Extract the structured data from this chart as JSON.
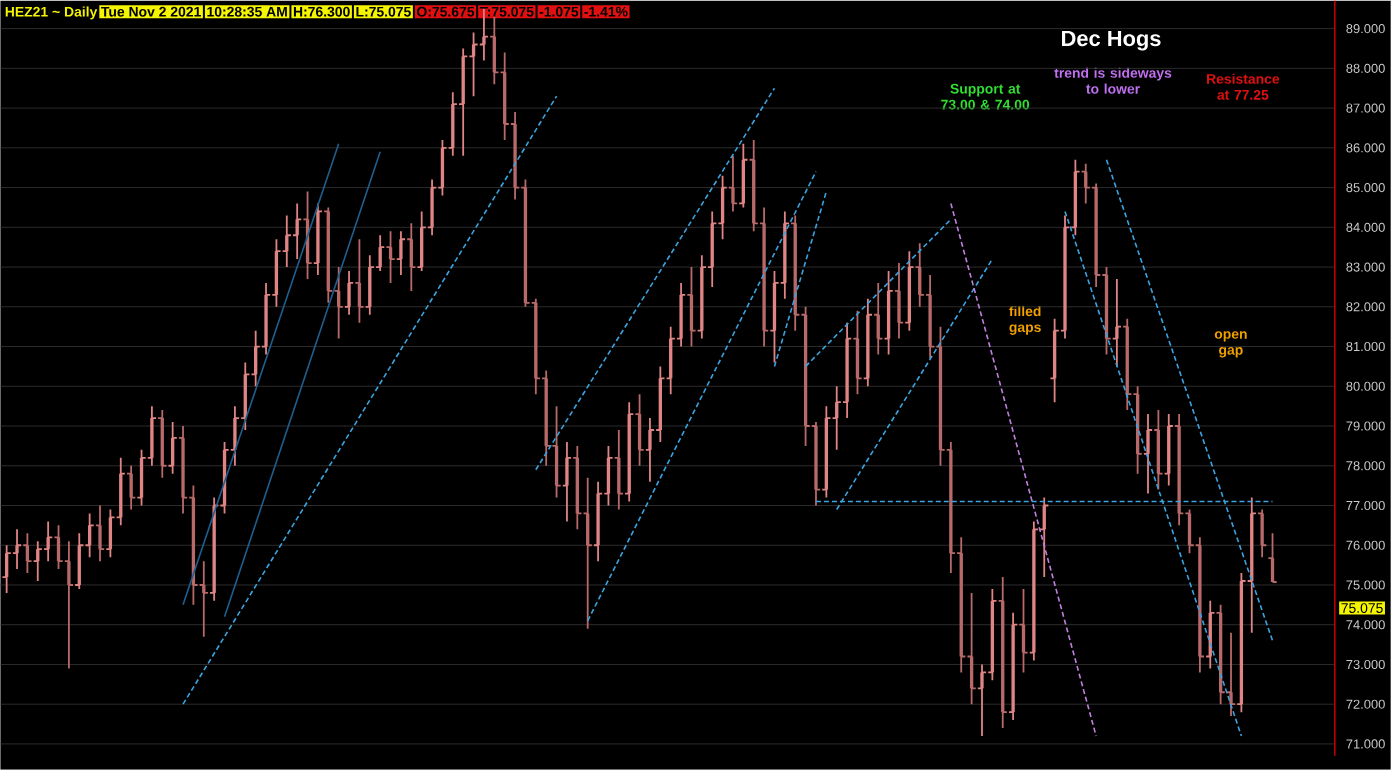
{
  "chart_data": {
    "type": "candlestick",
    "title": "Dec Hogs",
    "annotations": [
      "HEZ21 ~ Daily",
      "Tue Nov 2 2021",
      "10:28:35 AM",
      "H:76.300",
      "L:75.075",
      "O:75.675",
      "T:75.075",
      "-1.075",
      "-1.41%",
      "Support at 73.00 & 74.00",
      "trend is sideways to lower",
      "Resistance at 77.25",
      "filled gaps",
      "open gap",
      "75.075"
    ],
    "categories": [
      null,
      null,
      null,
      null,
      null,
      null,
      null,
      null,
      null,
      null,
      null,
      null,
      null,
      null,
      null,
      null,
      null,
      null,
      null,
      null,
      null,
      null,
      null,
      null,
      null,
      null,
      null,
      null,
      null,
      null,
      null,
      null,
      null,
      null,
      null,
      null,
      null,
      null,
      null,
      null,
      null,
      null,
      null,
      null,
      null,
      null,
      null,
      null,
      null,
      null,
      null,
      null,
      null,
      null,
      null,
      null,
      null,
      null,
      null,
      null,
      null,
      null,
      null,
      null,
      null,
      null,
      null,
      null,
      null,
      null,
      null,
      null,
      null,
      null,
      null,
      null,
      null,
      null,
      null,
      null,
      null,
      null,
      null,
      null,
      null,
      null,
      null,
      null,
      null,
      null,
      null,
      null,
      null,
      null,
      null,
      null,
      null,
      null,
      null,
      null,
      null,
      null,
      null,
      null,
      null,
      null,
      null,
      null,
      null,
      null,
      null,
      null,
      null,
      null,
      null,
      null,
      null,
      null,
      null,
      null,
      null,
      null,
      null
    ],
    "colors": [
      "#e08585",
      "#e08585",
      "#b86a6a",
      "#e08585",
      "#e08585",
      "#b86a6a",
      "#b86a6a",
      "#e08585",
      "#e08585",
      "#b86a6a",
      "#e08585",
      "#e08585",
      "#b86a6a",
      "#e08585",
      "#e08585",
      "#b86a6a",
      "#e08585",
      "#b86a6a",
      "#b86a6a",
      "#b86a6a",
      "#e08585",
      "#e08585",
      "#e08585",
      "#e08585",
      "#e08585",
      "#e08585",
      "#e08585",
      "#e08585",
      "#e08585",
      "#b86a6a",
      "#e08585",
      "#b86a6a",
      "#b86a6a",
      "#e08585",
      "#b86a6a",
      "#e08585",
      "#e08585",
      "#b86a6a",
      "#e08585",
      "#b86a6a",
      "#e08585",
      "#e08585",
      "#e08585",
      "#e08585",
      "#e08585",
      "#e08585",
      "#e08585",
      "#b86a6a",
      "#b86a6a",
      "#b86a6a",
      "#b86a6a",
      "#b86a6a",
      "#b86a6a",
      "#b86a6a",
      "#e08585",
      "#b86a6a",
      "#b86a6a",
      "#e08585",
      "#e08585",
      "#b86a6a",
      "#e08585",
      "#b86a6a",
      "#e08585",
      "#e08585",
      "#e08585",
      "#e08585",
      "#b86a6a",
      "#e08585",
      "#e08585",
      "#e08585",
      "#b86a6a",
      "#e08585",
      "#b86a6a",
      "#b86a6a",
      "#e08585",
      "#e08585",
      "#b86a6a",
      "#b86a6a",
      "#b86a6a",
      "#e08585",
      "#e08585",
      "#e08585",
      "#b86a6a",
      "#e08585",
      "#b86a6a",
      "#e08585",
      "#b86a6a",
      "#e08585",
      "#b86a6a",
      "#b86a6a",
      "#b86a6a",
      "#b86a6a",
      "#b86a6a",
      "#b86a6a",
      "#e08585",
      "#e08585",
      "#b86a6a",
      "#e08585",
      "#b86a6a",
      "#e08585",
      "#e08585",
      "#e08585",
      "#e08585",
      "#e08585",
      "#b86a6a",
      "#b86a6a",
      "#b86a6a",
      "#e08585",
      "#b86a6a",
      "#b86a6a",
      "#e08585",
      "#b86a6a",
      "#e08585",
      "#b86a6a",
      "#b86a6a",
      "#b86a6a",
      "#e08585",
      "#b86a6a",
      "#b86a6a",
      "#e08585",
      "#e08585",
      "#b86a6a",
      "#b86a6a"
    ],
    "ohlc": [
      [
        75.2,
        76.0,
        74.8,
        75.8
      ],
      [
        75.8,
        76.4,
        75.4,
        76.0
      ],
      [
        76.0,
        76.3,
        75.3,
        75.6
      ],
      [
        75.6,
        76.1,
        75.1,
        75.9
      ],
      [
        75.9,
        76.6,
        75.6,
        76.2
      ],
      [
        76.2,
        76.5,
        75.4,
        75.6
      ],
      [
        75.6,
        76.1,
        72.9,
        75.0
      ],
      [
        75.0,
        76.3,
        74.9,
        76.0
      ],
      [
        76.0,
        76.8,
        75.7,
        76.5
      ],
      [
        76.5,
        77.0,
        75.6,
        75.9
      ],
      [
        75.9,
        76.9,
        75.7,
        76.7
      ],
      [
        76.7,
        78.2,
        76.5,
        77.8
      ],
      [
        77.8,
        78.0,
        76.9,
        77.2
      ],
      [
        77.2,
        78.4,
        77.0,
        78.2
      ],
      [
        78.2,
        79.5,
        78.0,
        79.2
      ],
      [
        79.2,
        79.4,
        77.7,
        78.0
      ],
      [
        78.0,
        79.1,
        77.8,
        78.7
      ],
      [
        78.7,
        79.0,
        76.8,
        77.2
      ],
      [
        77.2,
        77.5,
        74.5,
        75.0
      ],
      [
        75.0,
        75.6,
        73.7,
        74.8
      ],
      [
        74.8,
        77.2,
        74.6,
        77.0
      ],
      [
        77.0,
        78.6,
        76.8,
        78.4
      ],
      [
        78.4,
        79.5,
        78.0,
        79.2
      ],
      [
        79.2,
        80.6,
        78.9,
        80.3
      ],
      [
        80.3,
        81.4,
        80.0,
        81.0
      ],
      [
        81.0,
        82.6,
        80.8,
        82.3
      ],
      [
        82.3,
        83.7,
        82.0,
        83.4
      ],
      [
        83.4,
        84.3,
        83.0,
        83.8
      ],
      [
        83.8,
        84.6,
        83.2,
        84.2
      ],
      [
        84.2,
        84.9,
        82.7,
        83.1
      ],
      [
        83.1,
        84.6,
        82.8,
        84.4
      ],
      [
        84.4,
        84.5,
        82.1,
        82.4
      ],
      [
        82.4,
        83.0,
        81.2,
        82.0
      ],
      [
        82.0,
        82.9,
        81.8,
        82.6
      ],
      [
        82.6,
        83.7,
        81.6,
        82.0
      ],
      [
        82.0,
        83.3,
        81.8,
        83.0
      ],
      [
        83.0,
        83.8,
        82.9,
        83.5
      ],
      [
        83.5,
        83.9,
        82.6,
        83.2
      ],
      [
        83.2,
        83.9,
        82.8,
        83.7
      ],
      [
        83.7,
        84.1,
        82.4,
        83.0
      ],
      [
        83.0,
        84.4,
        82.9,
        84.0
      ],
      [
        84.0,
        85.2,
        83.8,
        85.0
      ],
      [
        85.0,
        86.2,
        84.8,
        86.0
      ],
      [
        86.0,
        87.4,
        85.8,
        87.1
      ],
      [
        87.1,
        88.5,
        85.8,
        88.3
      ],
      [
        88.3,
        88.9,
        87.3,
        88.6
      ],
      [
        88.6,
        89.5,
        88.2,
        88.8
      ],
      [
        88.8,
        89.3,
        87.6,
        87.9
      ],
      [
        87.9,
        88.4,
        86.2,
        86.6
      ],
      [
        86.6,
        86.9,
        84.7,
        85.0
      ],
      [
        85.0,
        85.2,
        82.0,
        82.1
      ],
      [
        82.1,
        82.2,
        79.8,
        80.2
      ],
      [
        80.2,
        80.4,
        78.0,
        78.5
      ],
      [
        78.5,
        79.5,
        77.2,
        77.5
      ],
      [
        77.5,
        78.6,
        76.6,
        78.2
      ],
      [
        78.2,
        78.5,
        76.4,
        76.8
      ],
      [
        76.8,
        77.7,
        73.9,
        76.0
      ],
      [
        76.0,
        77.6,
        75.6,
        77.3
      ],
      [
        77.3,
        78.5,
        77.0,
        78.2
      ],
      [
        78.2,
        78.9,
        76.9,
        77.3
      ],
      [
        77.3,
        79.6,
        77.1,
        79.3
      ],
      [
        79.3,
        79.8,
        78.0,
        78.4
      ],
      [
        78.4,
        79.2,
        77.6,
        78.9
      ],
      [
        78.9,
        80.5,
        78.6,
        80.2
      ],
      [
        80.2,
        81.5,
        79.8,
        81.2
      ],
      [
        81.2,
        82.6,
        81.0,
        82.3
      ],
      [
        82.3,
        83.0,
        81.0,
        81.4
      ],
      [
        81.4,
        83.3,
        81.2,
        83.0
      ],
      [
        83.0,
        84.4,
        82.5,
        84.1
      ],
      [
        84.1,
        85.3,
        83.7,
        85.0
      ],
      [
        85.0,
        85.8,
        84.4,
        84.6
      ],
      [
        84.6,
        86.1,
        84.5,
        85.7
      ],
      [
        85.7,
        86.2,
        83.9,
        84.1
      ],
      [
        84.1,
        84.5,
        81.0,
        81.4
      ],
      [
        81.4,
        82.9,
        80.6,
        82.6
      ],
      [
        82.6,
        84.4,
        82.2,
        84.1
      ],
      [
        84.1,
        84.3,
        81.4,
        81.8
      ],
      [
        81.8,
        82.0,
        78.5,
        79.0
      ],
      [
        79.0,
        79.1,
        77.0,
        77.4
      ],
      [
        77.4,
        79.5,
        77.2,
        79.2
      ],
      [
        79.2,
        80.0,
        78.4,
        79.6
      ],
      [
        79.6,
        81.6,
        79.2,
        81.2
      ],
      [
        81.2,
        81.9,
        79.8,
        80.2
      ],
      [
        80.2,
        82.2,
        80.0,
        81.8
      ],
      [
        81.8,
        82.6,
        80.8,
        81.2
      ],
      [
        81.2,
        82.9,
        80.8,
        82.4
      ],
      [
        82.4,
        83.1,
        81.2,
        81.6
      ],
      [
        81.6,
        83.4,
        81.4,
        83.0
      ],
      [
        83.0,
        83.6,
        82.0,
        82.3
      ],
      [
        82.3,
        82.8,
        80.7,
        81.0
      ],
      [
        81.0,
        81.5,
        78.0,
        78.4
      ],
      [
        78.4,
        78.6,
        75.3,
        75.8
      ],
      [
        75.8,
        76.2,
        72.8,
        73.2
      ],
      [
        73.2,
        74.8,
        72.0,
        72.4
      ],
      [
        72.4,
        73.0,
        71.2,
        72.8
      ],
      [
        72.8,
        74.9,
        72.6,
        74.6
      ],
      [
        74.6,
        75.2,
        71.4,
        71.8
      ],
      [
        71.8,
        74.3,
        71.6,
        74.0
      ],
      [
        74.0,
        74.9,
        72.8,
        73.3
      ],
      [
        73.3,
        76.6,
        73.1,
        76.4
      ],
      [
        76.4,
        77.2,
        75.2,
        77.0
      ],
      [
        80.2,
        81.7,
        79.6,
        81.4
      ],
      [
        81.4,
        84.3,
        81.2,
        84.0
      ],
      [
        84.0,
        85.7,
        83.8,
        85.4
      ],
      [
        85.4,
        85.6,
        84.6,
        85.0
      ],
      [
        85.0,
        85.1,
        82.5,
        82.8
      ],
      [
        82.8,
        83.0,
        80.8,
        81.2
      ],
      [
        81.2,
        82.7,
        80.5,
        81.5
      ],
      [
        81.5,
        81.7,
        79.4,
        79.8
      ],
      [
        79.8,
        80.0,
        77.8,
        78.3
      ],
      [
        78.3,
        79.3,
        77.3,
        78.9
      ],
      [
        78.9,
        79.4,
        77.4,
        77.8
      ],
      [
        77.8,
        79.3,
        77.5,
        79.0
      ],
      [
        79.0,
        79.3,
        76.5,
        76.8
      ],
      [
        76.8,
        76.9,
        75.8,
        76.0
      ],
      [
        76.0,
        76.2,
        72.8,
        73.2
      ],
      [
        73.2,
        74.6,
        72.9,
        74.3
      ],
      [
        74.3,
        74.5,
        72.0,
        72.3
      ],
      [
        72.3,
        73.8,
        71.7,
        72.0
      ],
      [
        72.0,
        75.3,
        71.8,
        75.1
      ],
      [
        75.1,
        77.2,
        73.8,
        76.8
      ],
      [
        76.8,
        76.9,
        75.7,
        76.0
      ],
      [
        75.675,
        76.3,
        75.075,
        75.075
      ]
    ],
    "series": [
      {
        "type": "line",
        "color": "#1f5f8f",
        "line_style": "solid",
        "values": [
          null,
          null,
          null,
          null,
          null,
          null,
          null,
          null,
          null,
          null,
          null,
          null,
          null,
          null,
          null,
          null,
          null,
          74.5,
          null,
          null,
          null,
          null,
          null,
          null,
          null,
          null,
          null,
          null,
          null,
          null,
          null,
          null,
          86.1,
          null,
          null,
          null,
          null,
          null,
          null,
          null,
          null,
          null,
          null,
          null,
          null,
          null,
          null,
          null,
          null,
          null,
          null,
          null,
          null,
          null,
          null,
          null,
          null,
          null,
          null,
          null,
          null,
          null,
          null,
          null,
          null,
          null,
          null,
          null,
          null,
          null,
          null,
          null,
          null,
          null,
          null,
          null,
          null,
          null,
          null,
          null,
          null,
          null,
          null,
          null,
          null,
          null,
          null,
          null,
          null,
          null,
          null,
          null,
          null,
          null,
          null,
          null,
          null,
          null,
          null,
          null,
          null,
          null,
          null,
          null,
          null,
          null,
          null,
          null,
          null,
          null,
          null,
          null,
          null,
          null,
          null,
          null,
          null,
          null,
          null,
          null,
          null,
          null,
          null
        ]
      },
      {
        "type": "line",
        "color": "#1f5f8f",
        "line_style": "solid",
        "values": [
          null,
          null,
          null,
          null,
          null,
          null,
          null,
          null,
          null,
          null,
          null,
          null,
          null,
          null,
          null,
          null,
          null,
          null,
          null,
          null,
          null,
          74.2,
          null,
          null,
          null,
          null,
          null,
          null,
          null,
          null,
          null,
          null,
          null,
          null,
          null,
          null,
          85.9,
          null,
          null,
          null,
          null,
          null,
          null,
          null,
          null,
          null,
          null,
          null,
          null,
          null,
          null,
          null,
          null,
          null,
          null,
          null,
          null,
          null,
          null,
          null,
          null,
          null,
          null,
          null,
          null,
          null,
          null,
          null,
          null,
          null,
          null,
          null,
          null,
          null,
          null,
          null,
          null,
          null,
          null,
          null,
          null,
          null,
          null,
          null,
          null,
          null,
          null,
          null,
          null,
          null,
          null,
          null,
          null,
          null,
          null,
          null,
          null,
          null,
          null,
          null,
          null,
          null,
          null,
          null,
          null,
          null,
          null,
          null,
          null,
          null,
          null,
          null,
          null,
          null,
          null,
          null,
          null,
          null,
          null,
          null,
          null,
          null,
          null
        ]
      },
      {
        "type": "line",
        "color": "#3ba3e0",
        "line_style": "dashed",
        "values": [
          null,
          null,
          null,
          null,
          null,
          null,
          null,
          null,
          null,
          null,
          null,
          null,
          null,
          null,
          null,
          null,
          null,
          72.0,
          null,
          null,
          null,
          null,
          null,
          null,
          null,
          null,
          null,
          null,
          null,
          null,
          null,
          null,
          null,
          null,
          null,
          null,
          null,
          null,
          null,
          null,
          null,
          null,
          null,
          null,
          null,
          null,
          null,
          null,
          null,
          null,
          null,
          null,
          null,
          87.3,
          null,
          null,
          null,
          null,
          null,
          null,
          null,
          null,
          null,
          null,
          null,
          null,
          null,
          null,
          null,
          null,
          null,
          null,
          null,
          null,
          null,
          null,
          null,
          null,
          null,
          null,
          null,
          null,
          null,
          null,
          null,
          null,
          null,
          null,
          null,
          null,
          null,
          null,
          null,
          null,
          null,
          null,
          null,
          null,
          null,
          null,
          null,
          null,
          null,
          null,
          null,
          null,
          null,
          null,
          null,
          null,
          null,
          null,
          null,
          null,
          null,
          null,
          null,
          null,
          null,
          null,
          null,
          null,
          null
        ]
      },
      {
        "type": "line",
        "color": "#3ba3e0",
        "line_style": "dashed",
        "values": [
          null,
          null,
          null,
          null,
          null,
          null,
          null,
          null,
          null,
          null,
          null,
          null,
          null,
          null,
          null,
          null,
          null,
          null,
          null,
          null,
          null,
          null,
          null,
          null,
          null,
          null,
          null,
          null,
          null,
          null,
          null,
          null,
          null,
          null,
          null,
          null,
          null,
          null,
          null,
          null,
          null,
          null,
          null,
          null,
          null,
          null,
          null,
          null,
          null,
          null,
          null,
          77.9,
          null,
          null,
          null,
          null,
          null,
          null,
          null,
          null,
          null,
          null,
          null,
          null,
          null,
          null,
          null,
          null,
          null,
          null,
          null,
          null,
          null,
          null,
          87.5,
          null,
          null,
          null,
          null,
          null,
          null,
          null,
          null,
          null,
          null,
          null,
          null,
          null,
          null,
          null,
          null,
          null,
          null,
          null,
          null,
          null,
          null,
          null,
          null,
          null,
          null,
          null,
          null,
          null,
          null,
          null,
          null,
          null,
          null,
          null,
          null,
          null,
          null,
          null,
          null,
          null,
          null,
          null,
          null,
          null,
          null,
          null,
          null
        ]
      },
      {
        "type": "line",
        "color": "#3ba3e0",
        "line_style": "dashed",
        "values": [
          null,
          null,
          null,
          null,
          null,
          null,
          null,
          null,
          null,
          null,
          null,
          null,
          null,
          null,
          null,
          null,
          null,
          null,
          null,
          null,
          null,
          null,
          null,
          null,
          null,
          null,
          null,
          null,
          null,
          null,
          null,
          null,
          null,
          null,
          null,
          null,
          null,
          null,
          null,
          null,
          null,
          null,
          null,
          null,
          null,
          null,
          null,
          null,
          null,
          null,
          null,
          null,
          null,
          null,
          null,
          null,
          74.1,
          null,
          null,
          null,
          null,
          null,
          null,
          null,
          null,
          null,
          null,
          null,
          null,
          null,
          null,
          null,
          null,
          null,
          null,
          null,
          null,
          null,
          85.4,
          null,
          null,
          null,
          null,
          null,
          null,
          null,
          null,
          null,
          null,
          null,
          null,
          null,
          null,
          null,
          null,
          null,
          null,
          null,
          null,
          null,
          null,
          null,
          null,
          null,
          null,
          null,
          null,
          null,
          null,
          null,
          null,
          null,
          null,
          null,
          null,
          null,
          null,
          null,
          null,
          null,
          null,
          null,
          null
        ]
      },
      {
        "type": "line",
        "color": "#3ba3e0",
        "line_style": "dashed",
        "values": [
          null,
          null,
          null,
          null,
          null,
          null,
          null,
          null,
          null,
          null,
          null,
          null,
          null,
          null,
          null,
          null,
          null,
          null,
          null,
          null,
          null,
          null,
          null,
          null,
          null,
          null,
          null,
          null,
          null,
          null,
          null,
          null,
          null,
          null,
          null,
          null,
          null,
          null,
          null,
          null,
          null,
          null,
          null,
          null,
          null,
          null,
          null,
          null,
          null,
          null,
          null,
          null,
          null,
          null,
          null,
          null,
          null,
          null,
          null,
          null,
          null,
          null,
          null,
          null,
          null,
          null,
          null,
          null,
          null,
          null,
          null,
          null,
          null,
          null,
          80.5,
          null,
          null,
          null,
          null,
          84.9,
          null,
          null,
          null,
          null,
          null,
          null,
          null,
          null,
          null,
          null,
          null,
          null,
          null,
          null,
          null,
          null,
          null,
          null,
          null,
          null,
          null,
          null,
          null,
          null,
          null,
          null,
          null,
          null,
          null,
          null,
          null,
          null,
          null,
          null,
          null,
          null,
          null,
          null,
          null,
          null,
          null,
          null,
          null
        ]
      },
      {
        "type": "line",
        "color": "#3ba3e0",
        "line_style": "dashed",
        "values": [
          null,
          null,
          null,
          null,
          null,
          null,
          null,
          null,
          null,
          null,
          null,
          null,
          null,
          null,
          null,
          null,
          null,
          null,
          null,
          null,
          null,
          null,
          null,
          null,
          null,
          null,
          null,
          null,
          null,
          null,
          null,
          null,
          null,
          null,
          null,
          null,
          null,
          null,
          null,
          null,
          null,
          null,
          null,
          null,
          null,
          null,
          null,
          null,
          null,
          null,
          null,
          null,
          null,
          null,
          null,
          null,
          null,
          null,
          null,
          null,
          null,
          null,
          null,
          null,
          null,
          null,
          null,
          null,
          null,
          null,
          null,
          null,
          null,
          null,
          null,
          null,
          null,
          80.5,
          null,
          null,
          null,
          null,
          null,
          null,
          null,
          null,
          null,
          null,
          null,
          null,
          null,
          84.2,
          null,
          null,
          null,
          null,
          null,
          null,
          null,
          null,
          null,
          null,
          null,
          null,
          null,
          null,
          null,
          null,
          null,
          null,
          null,
          null,
          null,
          null,
          null,
          null,
          null,
          null,
          null,
          null,
          null,
          null,
          null
        ]
      },
      {
        "type": "line",
        "color": "#3ba3e0",
        "line_style": "dashed",
        "values": [
          null,
          null,
          null,
          null,
          null,
          null,
          null,
          null,
          null,
          null,
          null,
          null,
          null,
          null,
          null,
          null,
          null,
          null,
          null,
          null,
          null,
          null,
          null,
          null,
          null,
          null,
          null,
          null,
          null,
          null,
          null,
          null,
          null,
          null,
          null,
          null,
          null,
          null,
          null,
          null,
          null,
          null,
          null,
          null,
          null,
          null,
          null,
          null,
          null,
          null,
          null,
          null,
          null,
          null,
          null,
          null,
          null,
          null,
          null,
          null,
          null,
          null,
          null,
          null,
          null,
          null,
          null,
          null,
          null,
          null,
          null,
          null,
          null,
          null,
          null,
          null,
          null,
          null,
          null,
          null,
          76.9,
          null,
          null,
          null,
          null,
          null,
          null,
          null,
          null,
          null,
          null,
          null,
          null,
          null,
          null,
          83.2,
          null,
          null,
          null,
          null,
          null,
          null,
          null,
          null,
          null,
          null,
          null,
          null,
          null,
          null,
          null,
          null,
          null,
          null,
          null,
          null,
          null,
          null,
          null,
          null,
          null,
          null,
          null
        ]
      },
      {
        "type": "line",
        "color": "#c080e0",
        "line_style": "dashed",
        "values": [
          null,
          null,
          null,
          null,
          null,
          null,
          null,
          null,
          null,
          null,
          null,
          null,
          null,
          null,
          null,
          null,
          null,
          null,
          null,
          null,
          null,
          null,
          null,
          null,
          null,
          null,
          null,
          null,
          null,
          null,
          null,
          null,
          null,
          null,
          null,
          null,
          null,
          null,
          null,
          null,
          null,
          null,
          null,
          null,
          null,
          null,
          null,
          null,
          null,
          null,
          null,
          null,
          null,
          null,
          null,
          null,
          null,
          null,
          null,
          null,
          null,
          null,
          null,
          null,
          null,
          null,
          null,
          null,
          null,
          null,
          null,
          null,
          null,
          null,
          null,
          null,
          null,
          null,
          null,
          null,
          null,
          null,
          null,
          null,
          null,
          null,
          null,
          null,
          null,
          null,
          null,
          84.6,
          null,
          null,
          null,
          null,
          null,
          null,
          null,
          null,
          null,
          null,
          null,
          null,
          null,
          71.2,
          null,
          null,
          null,
          null,
          null,
          null,
          null,
          null,
          null,
          null,
          null,
          null,
          null,
          null,
          null,
          null,
          null
        ]
      },
      {
        "type": "line",
        "color": "#3ba3e0",
        "line_style": "dashed",
        "values": [
          null,
          null,
          null,
          null,
          null,
          null,
          null,
          null,
          null,
          null,
          null,
          null,
          null,
          null,
          null,
          null,
          null,
          null,
          null,
          null,
          null,
          null,
          null,
          null,
          null,
          null,
          null,
          null,
          null,
          null,
          null,
          null,
          null,
          null,
          null,
          null,
          null,
          null,
          null,
          null,
          null,
          null,
          null,
          null,
          null,
          null,
          null,
          null,
          null,
          null,
          null,
          null,
          null,
          null,
          null,
          null,
          null,
          null,
          null,
          null,
          null,
          null,
          null,
          null,
          null,
          null,
          null,
          null,
          null,
          null,
          null,
          null,
          null,
          null,
          null,
          null,
          null,
          null,
          77.1,
          null,
          null,
          null,
          null,
          null,
          null,
          null,
          null,
          null,
          null,
          null,
          null,
          null,
          null,
          null,
          null,
          null,
          null,
          null,
          null,
          null,
          null,
          null,
          null,
          null,
          null,
          null,
          null,
          null,
          null,
          null,
          null,
          null,
          null,
          null,
          null,
          null,
          null,
          null,
          null,
          null,
          null,
          null,
          77.1
        ]
      },
      {
        "type": "line",
        "color": "#3ba3e0",
        "line_style": "dashed",
        "values": [
          null,
          null,
          null,
          null,
          null,
          null,
          null,
          null,
          null,
          null,
          null,
          null,
          null,
          null,
          null,
          null,
          null,
          null,
          null,
          null,
          null,
          null,
          null,
          null,
          null,
          null,
          null,
          null,
          null,
          null,
          null,
          null,
          null,
          null,
          null,
          null,
          null,
          null,
          null,
          null,
          null,
          null,
          null,
          null,
          null,
          null,
          null,
          null,
          null,
          null,
          null,
          null,
          null,
          null,
          null,
          null,
          null,
          null,
          null,
          null,
          null,
          null,
          null,
          null,
          null,
          null,
          null,
          null,
          null,
          null,
          null,
          null,
          null,
          null,
          null,
          null,
          null,
          null,
          null,
          null,
          null,
          null,
          null,
          null,
          null,
          null,
          null,
          null,
          null,
          null,
          null,
          null,
          null,
          null,
          null,
          null,
          null,
          null,
          null,
          null,
          null,
          null,
          84.4,
          null,
          null,
          null,
          null,
          null,
          null,
          null,
          null,
          null,
          null,
          null,
          null,
          null,
          null,
          null,
          null,
          71.2,
          null,
          null,
          null
        ]
      },
      {
        "type": "line",
        "color": "#3ba3e0",
        "line_style": "dashed",
        "values": [
          null,
          null,
          null,
          null,
          null,
          null,
          null,
          null,
          null,
          null,
          null,
          null,
          null,
          null,
          null,
          null,
          null,
          null,
          null,
          null,
          null,
          null,
          null,
          null,
          null,
          null,
          null,
          null,
          null,
          null,
          null,
          null,
          null,
          null,
          null,
          null,
          null,
          null,
          null,
          null,
          null,
          null,
          null,
          null,
          null,
          null,
          null,
          null,
          null,
          null,
          null,
          null,
          null,
          null,
          null,
          null,
          null,
          null,
          null,
          null,
          null,
          null,
          null,
          null,
          null,
          null,
          null,
          null,
          null,
          null,
          null,
          null,
          null,
          null,
          null,
          null,
          null,
          null,
          null,
          null,
          null,
          null,
          null,
          null,
          null,
          null,
          null,
          null,
          null,
          null,
          null,
          null,
          null,
          null,
          null,
          null,
          null,
          null,
          null,
          null,
          null,
          null,
          null,
          null,
          null,
          null,
          85.7,
          null,
          null,
          null,
          null,
          null,
          null,
          null,
          null,
          null,
          null,
          null,
          null,
          null,
          null,
          null,
          73.6
        ]
      }
    ],
    "ylim": [
      70.7,
      89.7
    ],
    "yticks": [
      {
        "value": 71,
        "label": "71.000"
      },
      {
        "value": 72,
        "label": "72.000"
      },
      {
        "value": 73,
        "label": "73.000"
      },
      {
        "value": 74,
        "label": "74.000"
      },
      {
        "value": 75,
        "label": "75.000"
      },
      {
        "value": 76,
        "label": "76.000"
      },
      {
        "value": 77,
        "label": "77.000"
      },
      {
        "value": 78,
        "label": "78.000"
      },
      {
        "value": 79,
        "label": "79.000"
      },
      {
        "value": 80,
        "label": "80.000"
      },
      {
        "value": 81,
        "label": "81.000"
      },
      {
        "value": 82,
        "label": "82.000"
      },
      {
        "value": 83,
        "label": "83.000"
      },
      {
        "value": 84,
        "label": "84.000"
      },
      {
        "value": 85,
        "label": "85.000"
      },
      {
        "value": 86,
        "label": "86.000"
      },
      {
        "value": 87,
        "label": "87.000"
      },
      {
        "value": 88,
        "label": "88.000"
      },
      {
        "value": 89,
        "label": "89.000"
      }
    ],
    "grid": "y",
    "tick_labels": "y"
  }
}
